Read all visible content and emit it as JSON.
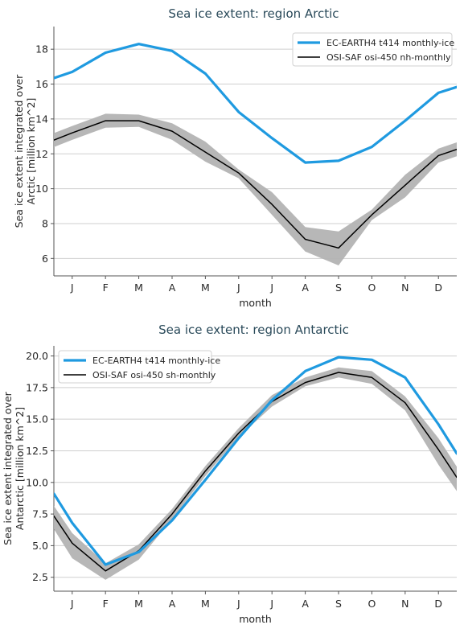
{
  "chart_data": [
    {
      "type": "line",
      "title": "Sea ice extent: region Arctic",
      "xlabel": "month",
      "ylabel": [
        "Sea ice extent integrated over",
        "Arctic [million km^2]"
      ],
      "categories": [
        "J",
        "F",
        "M",
        "A",
        "M",
        "J",
        "J",
        "A",
        "S",
        "O",
        "N",
        "D"
      ],
      "yticks": [
        6,
        8,
        10,
        12,
        14,
        16,
        18
      ],
      "ytick_labels": [
        "6",
        "8",
        "10",
        "12",
        "14",
        "16",
        "18"
      ],
      "ylim": [
        5.0,
        19.3
      ],
      "grid": true,
      "legend_position": "top-right",
      "series": [
        {
          "name": "EC-EARTH4 t414 monthly-ice",
          "color": "#1f9ae0",
          "values": [
            16.7,
            17.8,
            18.3,
            17.9,
            16.6,
            14.4,
            12.9,
            11.5,
            11.6,
            12.4,
            13.9,
            15.5
          ],
          "edge_values": [
            16.05,
            16.1
          ]
        },
        {
          "name": "OSI-SAF osi-450 nh-monthly",
          "color": "#000000",
          "values": [
            13.2,
            13.9,
            13.9,
            13.3,
            12.1,
            10.9,
            9.1,
            7.1,
            6.6,
            8.5,
            10.2,
            11.9
          ],
          "edge_values": [
            12.45,
            12.55
          ],
          "band_lower": [
            12.8,
            13.5,
            13.55,
            12.8,
            11.55,
            10.6,
            8.5,
            6.4,
            5.6,
            8.2,
            9.5,
            11.5
          ],
          "band_upper": [
            13.6,
            14.3,
            14.25,
            13.75,
            12.7,
            11.1,
            9.8,
            7.8,
            7.55,
            8.8,
            10.8,
            12.3
          ],
          "band_color": "#b3b3b3"
        }
      ]
    },
    {
      "type": "line",
      "title": "Sea ice extent: region Antarctic",
      "xlabel": "month",
      "ylabel": [
        "Sea ice extent integrated over",
        "Antarctic [million km^2]"
      ],
      "categories": [
        "J",
        "F",
        "M",
        "A",
        "M",
        "J",
        "J",
        "A",
        "S",
        "O",
        "N",
        "D"
      ],
      "yticks": [
        2.5,
        5.0,
        7.5,
        10.0,
        12.5,
        15.0,
        17.5,
        20.0
      ],
      "ytick_labels": [
        "2.5",
        "5.0",
        "7.5",
        "10.0",
        "12.5",
        "15.0",
        "17.5",
        "20.0"
      ],
      "ylim": [
        1.4,
        20.8
      ],
      "grid": true,
      "legend_position": "top-left",
      "series": [
        {
          "name": "EC-EARTH4 t414 monthly-ice",
          "color": "#1f9ae0",
          "values": [
            6.8,
            3.5,
            4.5,
            7.0,
            10.2,
            13.5,
            16.5,
            18.8,
            19.9,
            19.7,
            18.3,
            14.6
          ],
          "edge_values": [
            11.0,
            10.4
          ]
        },
        {
          "name": "OSI-SAF osi-450 sh-monthly",
          "color": "#000000",
          "values": [
            5.2,
            3.0,
            4.6,
            7.5,
            10.9,
            13.9,
            16.4,
            17.9,
            18.7,
            18.3,
            16.3,
            12.6
          ],
          "edge_values": [
            9.1,
            8.6
          ],
          "band_lower": [
            4.0,
            2.3,
            3.9,
            7.1,
            10.5,
            13.6,
            16.0,
            17.6,
            18.3,
            17.8,
            15.7,
            11.4
          ],
          "band_upper": [
            6.0,
            3.6,
            5.1,
            7.9,
            11.3,
            14.3,
            16.9,
            18.3,
            19.1,
            18.8,
            16.8,
            13.5
          ],
          "edge_band_lower": [
            8.2,
            7.6
          ],
          "edge_band_upper": [
            9.9,
            9.4
          ],
          "band_color": "#b3b3b3"
        }
      ]
    }
  ]
}
